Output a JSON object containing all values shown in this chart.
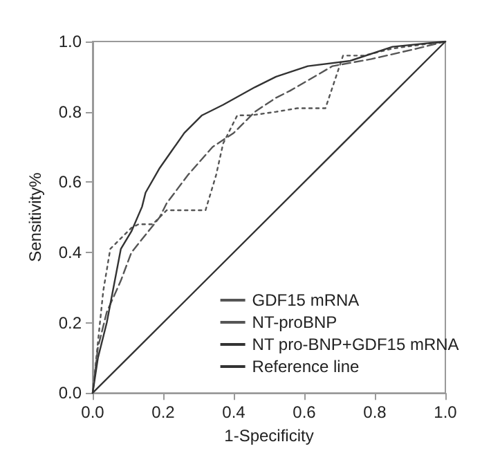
{
  "chart_data": {
    "type": "line",
    "xlabel": "1-Specificity",
    "ylabel": "Sensitivity%",
    "xlim": [
      0,
      1
    ],
    "ylim": [
      0,
      1
    ],
    "xticks": [
      {
        "value": 0,
        "label": "0.0"
      },
      {
        "value": 0.2,
        "label": "0.2"
      },
      {
        "value": 0.4,
        "label": "0.4"
      },
      {
        "value": 0.6,
        "label": "0.6"
      },
      {
        "value": 0.8,
        "label": "0.8"
      },
      {
        "value": 1,
        "label": "1.0"
      }
    ],
    "yticks": [
      {
        "value": 0,
        "label": "0.0"
      },
      {
        "value": 0.2,
        "label": "0.2"
      },
      {
        "value": 0.4,
        "label": "0.4"
      },
      {
        "value": 0.6,
        "label": "0.6"
      },
      {
        "value": 0.8,
        "label": "0.8"
      },
      {
        "value": 1,
        "label": "1.0"
      }
    ],
    "grid": false,
    "legend": "bottom right",
    "marker": "none",
    "series": [
      {
        "name": "GDF15 mRNA",
        "color": "#555555",
        "line_style": "dotted",
        "x": [
          0,
          0.03,
          0.05,
          0.08,
          0.11,
          0.13,
          0.17,
          0.21,
          0.32,
          0.35,
          0.37,
          0.41,
          0.45,
          0.52,
          0.58,
          0.66,
          0.71,
          0.77,
          0.85,
          1
        ],
        "values": [
          0,
          0.29,
          0.41,
          0.44,
          0.47,
          0.48,
          0.48,
          0.52,
          0.52,
          0.62,
          0.71,
          0.79,
          0.79,
          0.8,
          0.81,
          0.81,
          0.96,
          0.96,
          0.98,
          1
        ]
      },
      {
        "name": "NT-proBNP",
        "color": "#555555",
        "line_style": "dashed",
        "x": [
          0,
          0.015,
          0.04,
          0.08,
          0.11,
          0.15,
          0.19,
          0.21,
          0.27,
          0.34,
          0.4,
          0.46,
          0.52,
          0.56,
          0.68,
          0.79,
          0.92,
          1
        ],
        "values": [
          0,
          0.13,
          0.23,
          0.32,
          0.4,
          0.45,
          0.5,
          0.54,
          0.62,
          0.7,
          0.74,
          0.8,
          0.84,
          0.86,
          0.93,
          0.95,
          0.98,
          1
        ]
      },
      {
        "name": "NT pro-BNP+GDF15 mRNA",
        "color": "#333333",
        "line_style": "solid",
        "x": [
          0,
          0.015,
          0.04,
          0.08,
          0.11,
          0.14,
          0.15,
          0.19,
          0.225,
          0.26,
          0.31,
          0.37,
          0.46,
          0.52,
          0.61,
          0.73,
          0.85,
          1
        ],
        "values": [
          0,
          0.1,
          0.2,
          0.41,
          0.46,
          0.53,
          0.57,
          0.64,
          0.69,
          0.74,
          0.79,
          0.82,
          0.87,
          0.9,
          0.93,
          0.945,
          0.985,
          1
        ]
      },
      {
        "name": "Reference line",
        "color": "#333333",
        "line_style": "solid",
        "x": [
          0,
          1
        ],
        "values": [
          0,
          1
        ]
      }
    ]
  }
}
